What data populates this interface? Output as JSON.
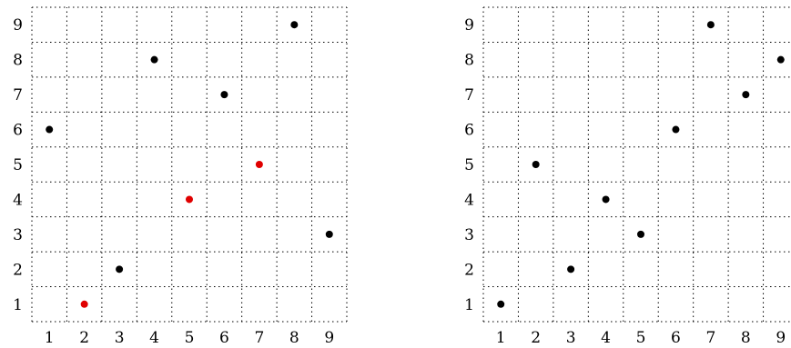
{
  "chart_data": [
    {
      "type": "scatter",
      "x_ticks": [
        "1",
        "2",
        "3",
        "4",
        "5",
        "6",
        "7",
        "8",
        "9"
      ],
      "y_ticks": [
        "1",
        "2",
        "3",
        "4",
        "5",
        "6",
        "7",
        "8",
        "9"
      ],
      "xlim": [
        0.5,
        9.5
      ],
      "ylim": [
        0.5,
        9.5
      ],
      "grid": true,
      "points": [
        {
          "x": 1,
          "y": 6,
          "color": "#000000"
        },
        {
          "x": 2,
          "y": 1,
          "color": "#e00000"
        },
        {
          "x": 3,
          "y": 2,
          "color": "#000000"
        },
        {
          "x": 4,
          "y": 8,
          "color": "#000000"
        },
        {
          "x": 5,
          "y": 4,
          "color": "#e00000"
        },
        {
          "x": 6,
          "y": 7,
          "color": "#000000"
        },
        {
          "x": 7,
          "y": 5,
          "color": "#e00000"
        },
        {
          "x": 8,
          "y": 9,
          "color": "#000000"
        },
        {
          "x": 9,
          "y": 3,
          "color": "#000000"
        }
      ]
    },
    {
      "type": "scatter",
      "x_ticks": [
        "1",
        "2",
        "3",
        "4",
        "5",
        "6",
        "7",
        "8",
        "9"
      ],
      "y_ticks": [
        "1",
        "2",
        "3",
        "4",
        "5",
        "6",
        "7",
        "8",
        "9"
      ],
      "xlim": [
        0.5,
        9.5
      ],
      "ylim": [
        0.5,
        9.5
      ],
      "grid": true,
      "points": [
        {
          "x": 1,
          "y": 1,
          "color": "#000000"
        },
        {
          "x": 2,
          "y": 5,
          "color": "#000000"
        },
        {
          "x": 3,
          "y": 2,
          "color": "#000000"
        },
        {
          "x": 4,
          "y": 4,
          "color": "#000000"
        },
        {
          "x": 5,
          "y": 3,
          "color": "#000000"
        },
        {
          "x": 6,
          "y": 6,
          "color": "#000000"
        },
        {
          "x": 7,
          "y": 9,
          "color": "#000000"
        },
        {
          "x": 8,
          "y": 7,
          "color": "#000000"
        },
        {
          "x": 9,
          "y": 8,
          "color": "#000000"
        }
      ]
    }
  ]
}
